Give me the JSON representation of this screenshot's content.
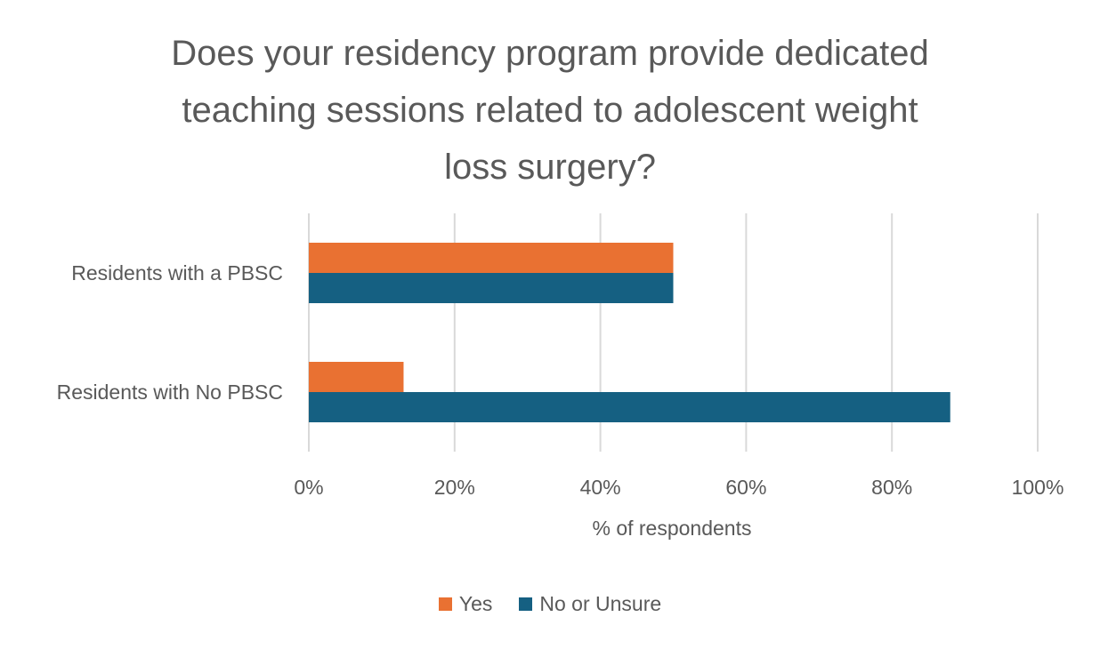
{
  "chart_data": {
    "type": "bar",
    "orientation": "horizontal",
    "title_lines": [
      "Does your residency program provide dedicated",
      "teaching sessions related to adolescent weight",
      "loss surgery?"
    ],
    "categories": [
      "Residents with a PBSC",
      "Residents with No PBSC"
    ],
    "series": [
      {
        "name": "Yes",
        "color": "#E97132",
        "values": [
          50,
          13
        ]
      },
      {
        "name": "No or Unsure",
        "color": "#156082",
        "values": [
          50,
          88
        ]
      }
    ],
    "xlabel": "% of respondents",
    "xlim": [
      0,
      100
    ],
    "xticks": [
      "0%",
      "20%",
      "40%",
      "60%",
      "80%",
      "100%"
    ],
    "grid": true,
    "legend_position": "bottom"
  }
}
